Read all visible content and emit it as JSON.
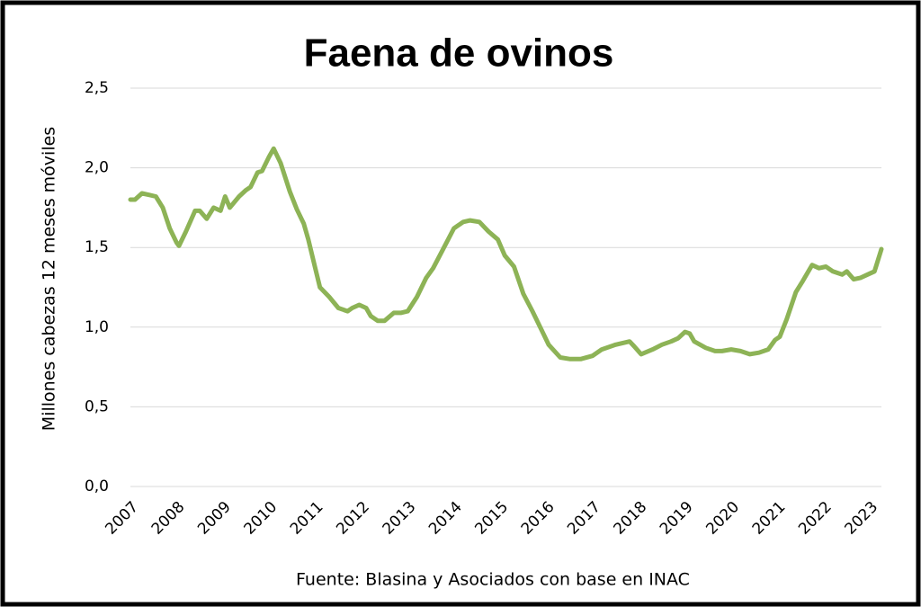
{
  "chart_data": {
    "type": "line",
    "title": "Faena de ovinos",
    "y_label": "Millones cabezas 12 meses móviles",
    "source": "Fuente: Blasina y Asociados con base en INAC",
    "xlim": [
      2007,
      2023.25
    ],
    "xticks": [
      2007,
      2008,
      2009,
      2010,
      2011,
      2012,
      2013,
      2014,
      2015,
      2016,
      2017,
      2018,
      2019,
      2020,
      2021,
      2022,
      2023
    ],
    "ylim": [
      0,
      2.5
    ],
    "yticks": [
      {
        "value": 0,
        "label": "0,0"
      },
      {
        "value": 0.5,
        "label": "0,5"
      },
      {
        "value": 1,
        "label": "1,0"
      },
      {
        "value": 1.5,
        "label": "1,5"
      },
      {
        "value": 2,
        "label": "2,0"
      },
      {
        "value": 2.5,
        "label": "2,5"
      }
    ],
    "grid": true,
    "series": [
      {
        "name": "Faena",
        "color": "#8db356",
        "x": [
          2007.0,
          2007.1,
          2007.25,
          2007.4,
          2007.55,
          2007.7,
          2007.85,
          2008.0,
          2008.05,
          2008.2,
          2008.4,
          2008.5,
          2008.65,
          2008.8,
          2008.95,
          2009.05,
          2009.15,
          2009.35,
          2009.5,
          2009.6,
          2009.75,
          2009.85,
          2010.0,
          2010.1,
          2010.25,
          2010.45,
          2010.6,
          2010.75,
          2010.85,
          2011.0,
          2011.1,
          2011.3,
          2011.5,
          2011.7,
          2011.8,
          2011.95,
          2012.1,
          2012.2,
          2012.35,
          2012.5,
          2012.7,
          2012.85,
          2013.0,
          2013.2,
          2013.4,
          2013.55,
          2013.75,
          2014.0,
          2014.2,
          2014.35,
          2014.55,
          2014.75,
          2014.95,
          2015.1,
          2015.3,
          2015.5,
          2015.7,
          2015.9,
          2016.05,
          2016.3,
          2016.5,
          2016.75,
          2017.0,
          2017.2,
          2017.5,
          2017.8,
          2017.9,
          2018.05,
          2018.3,
          2018.5,
          2018.7,
          2018.85,
          2019.0,
          2019.1,
          2019.2,
          2019.45,
          2019.65,
          2019.8,
          2020.0,
          2020.2,
          2020.4,
          2020.6,
          2020.8,
          2020.95,
          2021.05,
          2021.2,
          2021.4,
          2021.55,
          2021.75,
          2021.9,
          2022.05,
          2022.2,
          2022.4,
          2022.5,
          2022.65,
          2022.8,
          2022.95,
          2023.1,
          2023.25
        ],
        "values": [
          1.8,
          1.8,
          1.84,
          1.83,
          1.82,
          1.75,
          1.62,
          1.53,
          1.51,
          1.6,
          1.73,
          1.73,
          1.68,
          1.75,
          1.73,
          1.82,
          1.75,
          1.82,
          1.86,
          1.88,
          1.97,
          1.98,
          2.07,
          2.12,
          2.03,
          1.85,
          1.74,
          1.65,
          1.55,
          1.37,
          1.25,
          1.19,
          1.12,
          1.1,
          1.12,
          1.14,
          1.12,
          1.07,
          1.04,
          1.04,
          1.09,
          1.09,
          1.1,
          1.19,
          1.31,
          1.37,
          1.48,
          1.62,
          1.66,
          1.67,
          1.66,
          1.6,
          1.55,
          1.45,
          1.38,
          1.21,
          1.1,
          0.98,
          0.89,
          0.81,
          0.8,
          0.8,
          0.82,
          0.86,
          0.89,
          0.91,
          0.88,
          0.83,
          0.86,
          0.89,
          0.91,
          0.93,
          0.97,
          0.96,
          0.91,
          0.87,
          0.85,
          0.85,
          0.86,
          0.85,
          0.83,
          0.84,
          0.86,
          0.92,
          0.94,
          1.05,
          1.22,
          1.29,
          1.39,
          1.37,
          1.38,
          1.35,
          1.33,
          1.35,
          1.3,
          1.31,
          1.33,
          1.35,
          1.49
        ]
      }
    ]
  }
}
